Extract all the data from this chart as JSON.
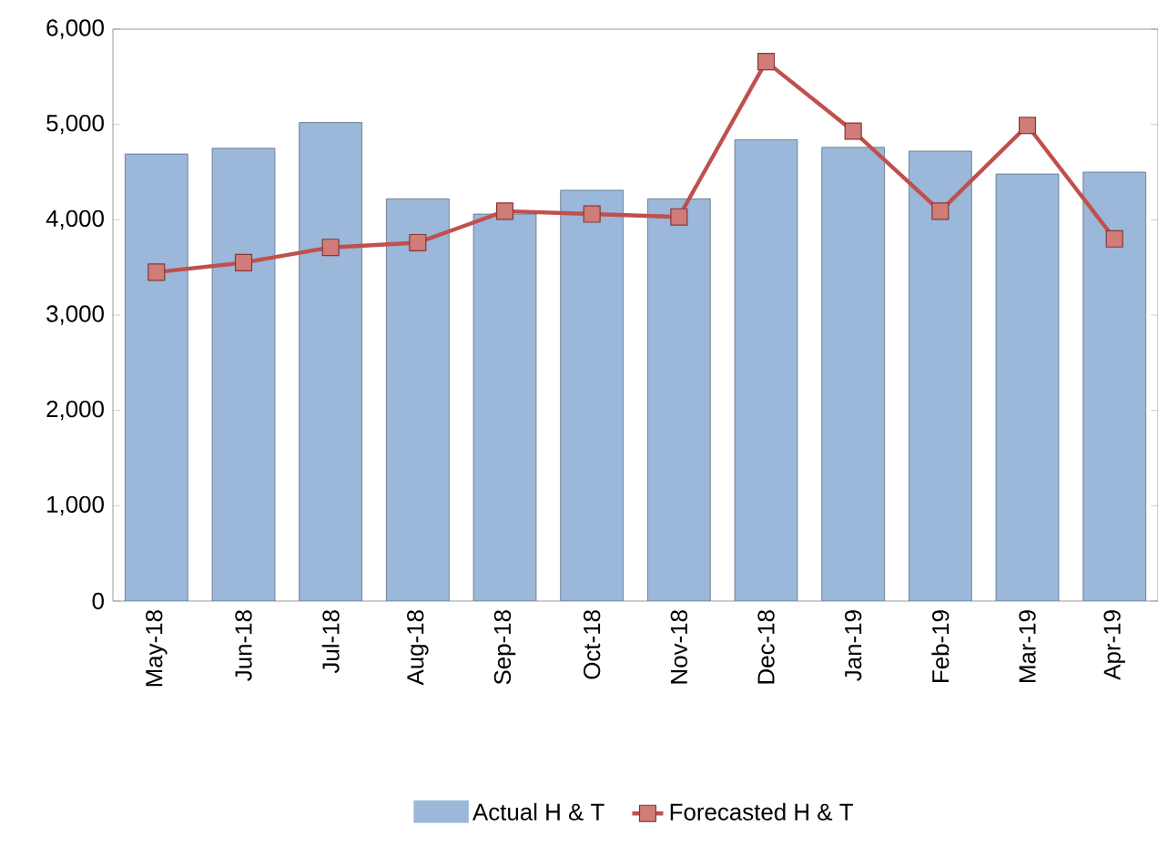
{
  "chart_data": {
    "type": "bar",
    "categories": [
      "May-18",
      "Jun-18",
      "Jul-18",
      "Aug-18",
      "Sep-18",
      "Oct-18",
      "Nov-18",
      "Dec-18",
      "Jan-19",
      "Feb-19",
      "Mar-19",
      "Apr-19"
    ],
    "series": [
      {
        "name": "Actual H & T",
        "color": "#9bb7d9",
        "values": [
          4690,
          4750,
          5020,
          4220,
          4060,
          4310,
          4220,
          4840,
          4760,
          4720,
          4480,
          4500
        ]
      },
      {
        "name": "Forecasted H & T",
        "type": "line",
        "color": "#c0504d",
        "marker": "square",
        "values": [
          3450,
          3550,
          3710,
          3760,
          4090,
          4060,
          4030,
          5660,
          4930,
          4090,
          4990,
          3800
        ]
      }
    ],
    "ylim": [
      0,
      6000
    ],
    "yticks": [
      {
        "value": 0,
        "label": "0"
      },
      {
        "value": 1000,
        "label": "1,000"
      },
      {
        "value": 2000,
        "label": "2,000"
      },
      {
        "value": 3000,
        "label": "3,000"
      },
      {
        "value": 4000,
        "label": "4,000"
      },
      {
        "value": 5000,
        "label": "5,000"
      },
      {
        "value": 6000,
        "label": "6,000"
      }
    ],
    "legend": "bottom"
  }
}
